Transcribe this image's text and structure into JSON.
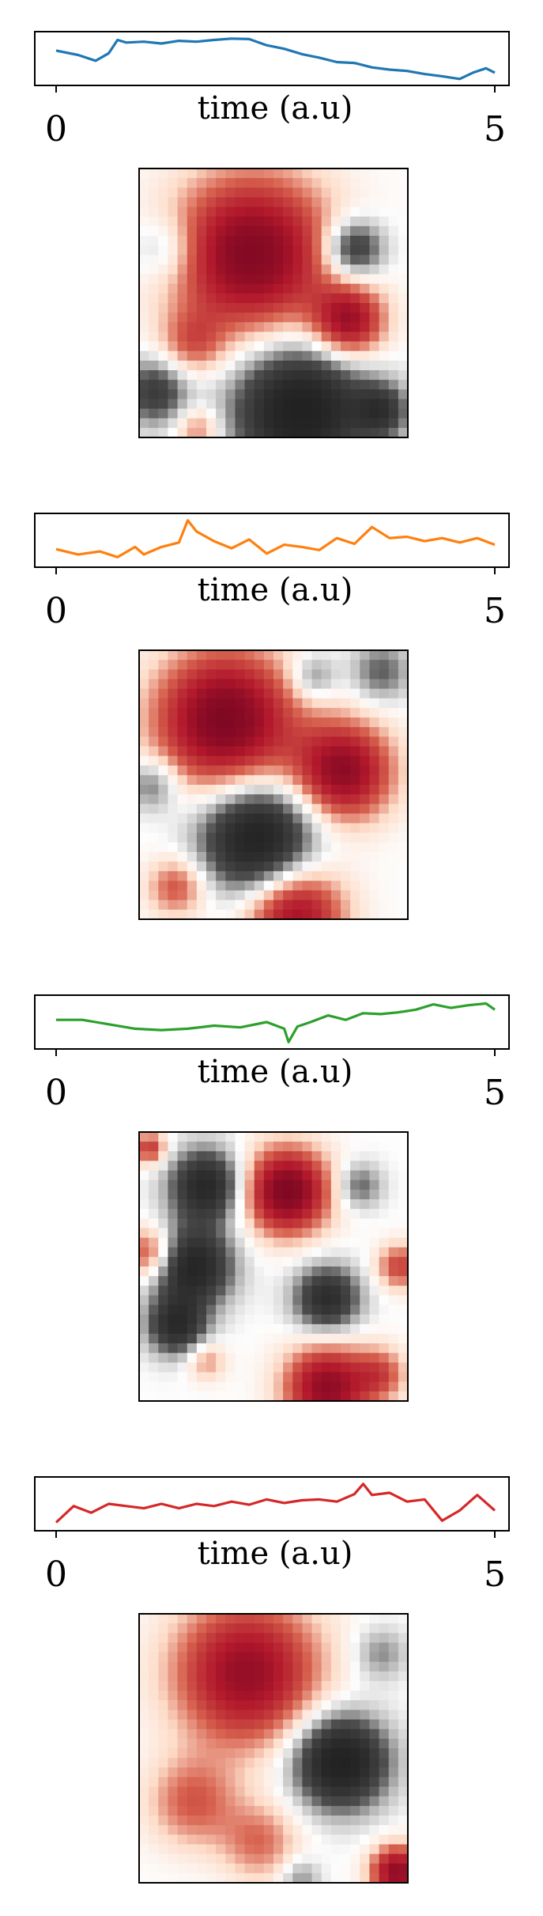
{
  "chart_data": [
    {
      "type": "line",
      "xlabel": "time (a.u)",
      "xticks": [
        "0",
        "5"
      ],
      "xlim": [
        -0.2,
        5.25
      ],
      "ylim": [
        0.0,
        1.0
      ],
      "color": "#1f77b4",
      "x": [
        0,
        0.25,
        0.45,
        0.6,
        0.7,
        0.8,
        1.0,
        1.2,
        1.4,
        1.6,
        1.8,
        2.0,
        2.2,
        2.4,
        2.6,
        2.8,
        3.0,
        3.2,
        3.4,
        3.6,
        3.8,
        4.0,
        4.2,
        4.4,
        4.6,
        4.75,
        4.9,
        5.0
      ],
      "y": [
        0.68,
        0.58,
        0.45,
        0.62,
        0.92,
        0.86,
        0.88,
        0.84,
        0.9,
        0.88,
        0.92,
        0.95,
        0.94,
        0.8,
        0.72,
        0.6,
        0.52,
        0.42,
        0.4,
        0.3,
        0.25,
        0.22,
        0.15,
        0.1,
        0.04,
        0.18,
        0.28,
        0.18
      ],
      "heatmap": {
        "rows": 28,
        "cols": 28,
        "colormap": "RdGy_r",
        "blobs": [
          {
            "cx": 0.42,
            "cy": 0.32,
            "r": 0.24,
            "v": 1.1
          },
          {
            "cx": 0.78,
            "cy": 0.57,
            "r": 0.11,
            "v": 0.9
          },
          {
            "cx": 0.6,
            "cy": 0.9,
            "r": 0.2,
            "v": -1.1
          },
          {
            "cx": 0.8,
            "cy": 0.3,
            "r": 0.09,
            "v": -0.7
          },
          {
            "cx": 0.06,
            "cy": 0.83,
            "r": 0.1,
            "v": -0.6
          },
          {
            "cx": 0.9,
            "cy": 0.9,
            "r": 0.08,
            "v": -0.6
          },
          {
            "cx": 0.2,
            "cy": 0.65,
            "r": 0.1,
            "v": 0.4
          },
          {
            "cx": 0.1,
            "cy": 0.3,
            "r": 0.1,
            "v": -0.3
          },
          {
            "cx": 0.22,
            "cy": 0.97,
            "r": 0.07,
            "v": 0.4
          }
        ]
      }
    },
    {
      "type": "line",
      "xlabel": "time (a.u)",
      "xticks": [
        "0",
        "5"
      ],
      "xlim": [
        -0.2,
        5.25
      ],
      "ylim": [
        0.0,
        1.0
      ],
      "color": "#ff7f0e",
      "x": [
        0,
        0.25,
        0.5,
        0.7,
        0.9,
        1.0,
        1.2,
        1.4,
        1.5,
        1.6,
        1.8,
        2.0,
        2.2,
        2.4,
        2.6,
        2.8,
        3.0,
        3.2,
        3.4,
        3.6,
        3.8,
        4.0,
        4.2,
        4.4,
        4.6,
        4.8,
        5.0
      ],
      "y": [
        0.3,
        0.18,
        0.25,
        0.12,
        0.35,
        0.18,
        0.35,
        0.45,
        0.95,
        0.7,
        0.48,
        0.32,
        0.52,
        0.2,
        0.4,
        0.35,
        0.28,
        0.55,
        0.42,
        0.8,
        0.55,
        0.58,
        0.48,
        0.55,
        0.45,
        0.55,
        0.4
      ],
      "heatmap": {
        "rows": 28,
        "cols": 28,
        "colormap": "RdGy_r",
        "blobs": [
          {
            "cx": 0.32,
            "cy": 0.26,
            "r": 0.21,
            "v": 1.15
          },
          {
            "cx": 0.76,
            "cy": 0.45,
            "r": 0.15,
            "v": 1.0
          },
          {
            "cx": 0.44,
            "cy": 0.7,
            "r": 0.17,
            "v": -1.05
          },
          {
            "cx": 0.58,
            "cy": 0.98,
            "r": 0.15,
            "v": 0.9
          },
          {
            "cx": 0.14,
            "cy": 0.88,
            "r": 0.09,
            "v": 0.5
          },
          {
            "cx": 0.9,
            "cy": 0.08,
            "r": 0.09,
            "v": -0.4
          },
          {
            "cx": 0.05,
            "cy": 0.5,
            "r": 0.08,
            "v": -0.4
          },
          {
            "cx": 0.65,
            "cy": 0.1,
            "r": 0.07,
            "v": -0.35
          }
        ]
      }
    },
    {
      "type": "line",
      "xlabel": "time (a.u)",
      "xticks": [
        "0",
        "5"
      ],
      "xlim": [
        -0.2,
        5.25
      ],
      "ylim": [
        0.0,
        1.0
      ],
      "color": "#2ca02c",
      "x": [
        0,
        0.3,
        0.6,
        0.9,
        1.2,
        1.5,
        1.8,
        2.1,
        2.4,
        2.6,
        2.65,
        2.75,
        2.9,
        3.1,
        3.3,
        3.5,
        3.7,
        3.9,
        4.1,
        4.3,
        4.5,
        4.7,
        4.9,
        5.0
      ],
      "y": [
        0.55,
        0.55,
        0.45,
        0.35,
        0.32,
        0.35,
        0.42,
        0.38,
        0.5,
        0.35,
        0.05,
        0.4,
        0.5,
        0.65,
        0.55,
        0.7,
        0.68,
        0.72,
        0.78,
        0.9,
        0.82,
        0.88,
        0.92,
        0.78
      ],
      "heatmap": {
        "rows": 28,
        "cols": 28,
        "colormap": "RdGy_r",
        "blobs": [
          {
            "cx": 0.25,
            "cy": 0.2,
            "r": 0.11,
            "v": -0.9
          },
          {
            "cx": 0.2,
            "cy": 0.5,
            "r": 0.12,
            "v": -0.95
          },
          {
            "cx": 0.14,
            "cy": 0.72,
            "r": 0.09,
            "v": -0.8
          },
          {
            "cx": 0.55,
            "cy": 0.22,
            "r": 0.13,
            "v": 1.15
          },
          {
            "cx": 0.7,
            "cy": 0.62,
            "r": 0.1,
            "v": -0.8
          },
          {
            "cx": 0.7,
            "cy": 0.95,
            "r": 0.13,
            "v": 1.0
          },
          {
            "cx": 0.04,
            "cy": 0.45,
            "r": 0.08,
            "v": 0.6
          },
          {
            "cx": 0.97,
            "cy": 0.5,
            "r": 0.07,
            "v": 0.55
          },
          {
            "cx": 0.9,
            "cy": 0.9,
            "r": 0.08,
            "v": 0.45
          },
          {
            "cx": 0.25,
            "cy": 0.85,
            "r": 0.06,
            "v": 0.35
          },
          {
            "cx": 0.82,
            "cy": 0.2,
            "r": 0.07,
            "v": -0.4
          },
          {
            "cx": 0.04,
            "cy": 0.06,
            "r": 0.05,
            "v": 0.6
          }
        ]
      }
    },
    {
      "type": "line",
      "xlabel": "time (a.u)",
      "xticks": [
        "0",
        "5"
      ],
      "xlim": [
        -0.2,
        5.25
      ],
      "ylim": [
        0.0,
        1.0
      ],
      "color": "#d62728",
      "x": [
        0,
        0.2,
        0.4,
        0.6,
        0.8,
        1.0,
        1.2,
        1.4,
        1.6,
        1.8,
        2.0,
        2.2,
        2.4,
        2.6,
        2.8,
        3.0,
        3.2,
        3.4,
        3.5,
        3.6,
        3.8,
        4.0,
        4.2,
        4.4,
        4.6,
        4.8,
        5.0
      ],
      "y": [
        0.08,
        0.45,
        0.3,
        0.5,
        0.45,
        0.4,
        0.5,
        0.4,
        0.5,
        0.45,
        0.55,
        0.48,
        0.6,
        0.52,
        0.58,
        0.6,
        0.55,
        0.72,
        0.95,
        0.7,
        0.75,
        0.55,
        0.6,
        0.12,
        0.35,
        0.7,
        0.35
      ],
      "heatmap": {
        "rows": 28,
        "cols": 28,
        "colormap": "RdGy_r",
        "blobs": [
          {
            "cx": 0.4,
            "cy": 0.22,
            "r": 0.22,
            "v": 0.95
          },
          {
            "cx": 0.75,
            "cy": 0.55,
            "r": 0.14,
            "v": -1.1
          },
          {
            "cx": 0.2,
            "cy": 0.7,
            "r": 0.14,
            "v": 0.45
          },
          {
            "cx": 0.45,
            "cy": 0.85,
            "r": 0.12,
            "v": 0.4
          },
          {
            "cx": 0.96,
            "cy": 0.96,
            "r": 0.08,
            "v": 1.0
          },
          {
            "cx": 0.9,
            "cy": 0.15,
            "r": 0.08,
            "v": -0.3
          },
          {
            "cx": 0.6,
            "cy": 0.98,
            "r": 0.06,
            "v": -0.3
          }
        ]
      }
    }
  ]
}
